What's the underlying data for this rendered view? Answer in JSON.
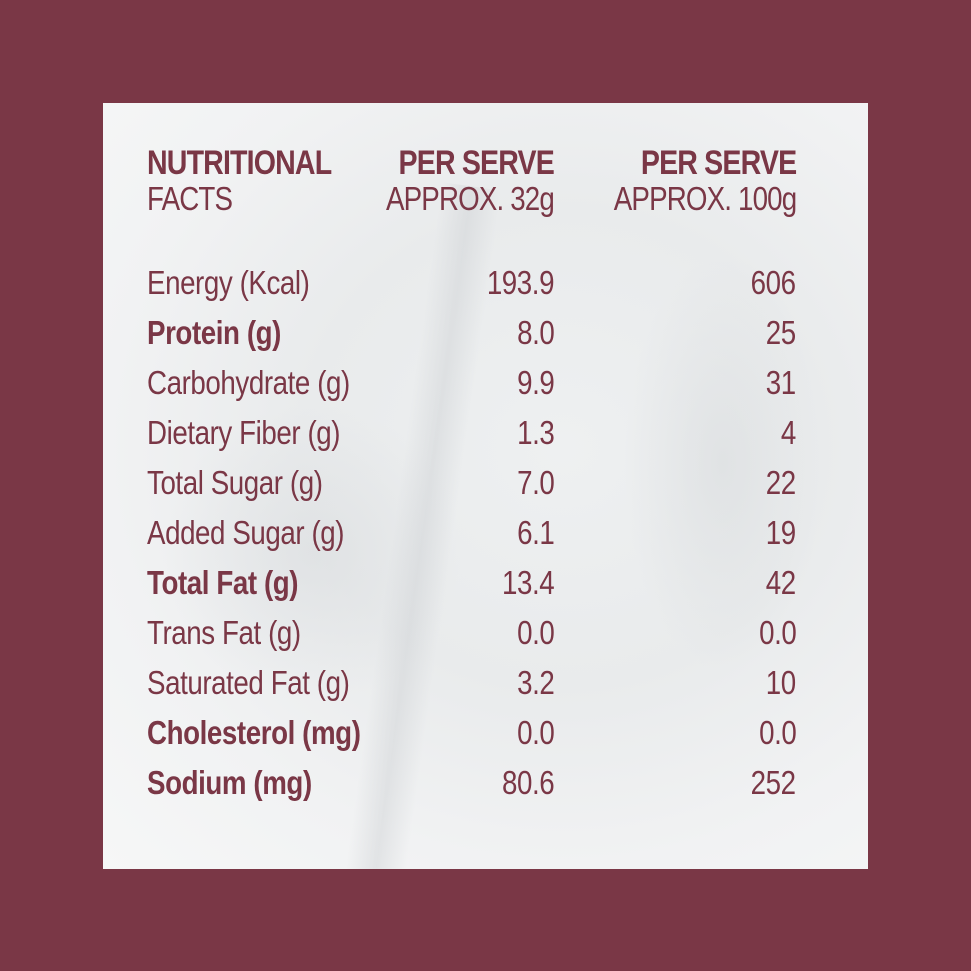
{
  "header": {
    "col1_line1": "NUTRITIONAL",
    "col1_line2": "FACTS",
    "col2_line1": "PER SERVE",
    "col2_line2": "APPROX. 32g",
    "col3_line1": "PER SERVE",
    "col3_line2": "APPROX. 100g"
  },
  "rows": [
    {
      "label": "Energy (Kcal)",
      "per_32g": "193.9",
      "per_100g": "606",
      "bold": false
    },
    {
      "label": "Protein (g)",
      "per_32g": "8.0",
      "per_100g": "25",
      "bold": true
    },
    {
      "label": "Carbohydrate (g)",
      "per_32g": "9.9",
      "per_100g": "31",
      "bold": false
    },
    {
      "label": "Dietary Fiber (g)",
      "per_32g": "1.3",
      "per_100g": "4",
      "bold": false
    },
    {
      "label": "Total Sugar (g)",
      "per_32g": "7.0",
      "per_100g": "22",
      "bold": false
    },
    {
      "label": "Added Sugar (g)",
      "per_32g": "6.1",
      "per_100g": "19",
      "bold": false
    },
    {
      "label": "Total Fat (g)",
      "per_32g": "13.4",
      "per_100g": "42",
      "bold": true
    },
    {
      "label": "Trans Fat (g)",
      "per_32g": "0.0",
      "per_100g": "0.0",
      "bold": false
    },
    {
      "label": "Saturated Fat (g)",
      "per_32g": "3.2",
      "per_100g": "10",
      "bold": false
    },
    {
      "label": "Cholesterol (mg)",
      "per_32g": "0.0",
      "per_100g": "0.0",
      "bold": true
    },
    {
      "label": "Sodium (mg)",
      "per_32g": "80.6",
      "per_100g": "252",
      "bold": true
    }
  ],
  "colors": {
    "brand": "#7a3746",
    "card_background": "#eeeff0"
  }
}
